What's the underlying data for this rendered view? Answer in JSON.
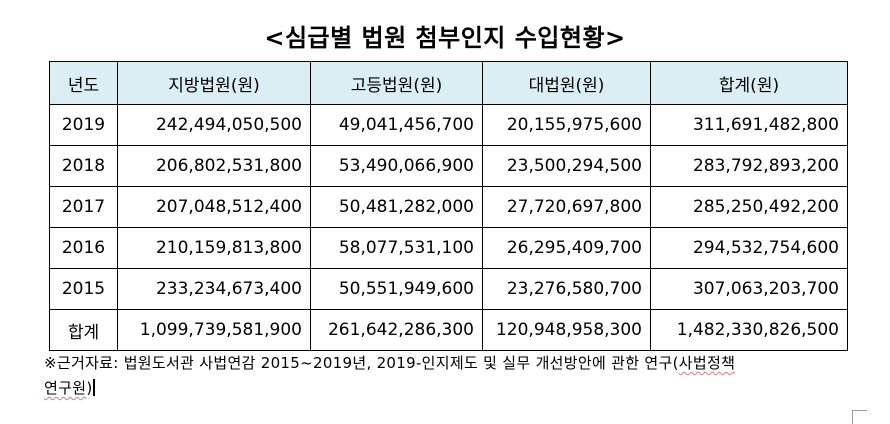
{
  "title": "<심급별 법원 첨부인지 수입현황>",
  "table": {
    "headers": [
      "년도",
      "지방법원(원)",
      "고등법원(원)",
      "대법원(원)",
      "합계(원)"
    ],
    "rows": [
      [
        "2019",
        "242,494,050,500",
        "49,041,456,700",
        "20,155,975,600",
        "311,691,482,800"
      ],
      [
        "2018",
        "206,802,531,800",
        "53,490,066,900",
        "23,500,294,500",
        "283,792,893,200"
      ],
      [
        "2017",
        "207,048,512,400",
        "50,481,282,000",
        "27,720,697,800",
        "285,250,492,200"
      ],
      [
        "2016",
        "210,159,813,800",
        "58,077,531,100",
        "26,295,409,700",
        "294,532,754,600"
      ],
      [
        "2015",
        "233,234,673,400",
        "50,551,949,600",
        "23,276,580,700",
        "307,063,203,700"
      ],
      [
        "합계",
        "1,099,739,581,900",
        "261,642,286,300",
        "120,948,958,300",
        "1,482,330,826,500"
      ]
    ]
  },
  "note": {
    "main": "※근거자료: 법원도서관 사법연감 2015~2019년, 2019-인지제도 및 실무 개선방안에 관한 연구(",
    "underlined_1": "사법정책",
    "underlined_2": "연구원",
    "end": ")"
  }
}
